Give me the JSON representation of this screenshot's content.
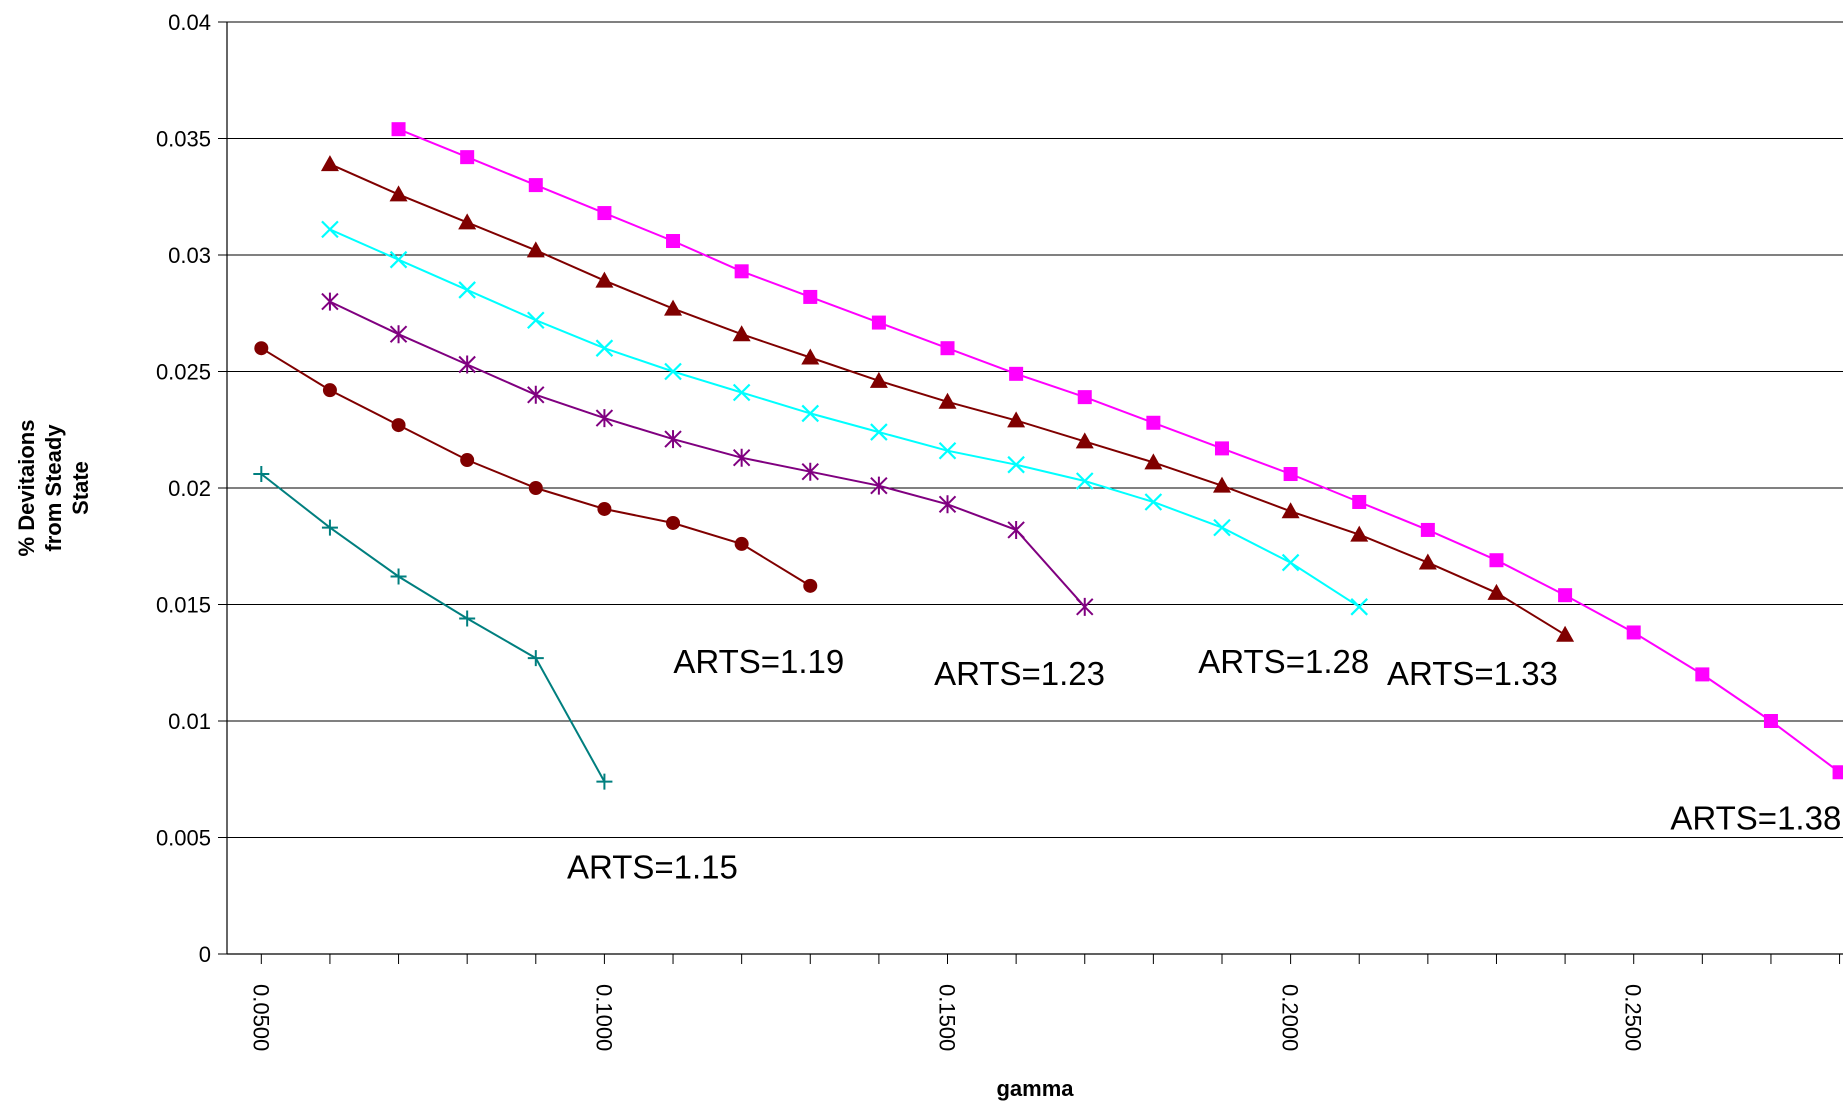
{
  "chart_data": {
    "type": "line",
    "title": "",
    "xlabel": "gamma",
    "ylabel": "% Devitaions from Steady State",
    "xlim": [
      0.045,
      0.2805
    ],
    "ylim": [
      0,
      0.04
    ],
    "y_ticks": [
      0,
      0.005,
      0.01,
      0.015,
      0.02,
      0.025,
      0.03,
      0.035,
      0.04
    ],
    "y_tick_labels": [
      "0",
      "0.005",
      "0.01",
      "0.015",
      "0.02",
      "0.025",
      "0.03",
      "0.035",
      "0.04"
    ],
    "x_ticks": [
      0.05,
      0.1,
      0.15,
      0.2,
      0.25
    ],
    "x_tick_labels": [
      "0.0500",
      "0.1000",
      "0.1500",
      "0.2000",
      "0.2500"
    ],
    "grid": "horizontal",
    "legend": "none",
    "series": [
      {
        "marker": "plus",
        "color": "#007F7F",
        "label": "ARTS=1.15",
        "x": [
          0.05,
          0.06,
          0.07,
          0.08,
          0.09,
          0.1
        ],
        "y": [
          0.0206,
          0.0183,
          0.0162,
          0.0144,
          0.0127,
          0.0074
        ]
      },
      {
        "marker": "circle",
        "color": "#800000",
        "label": "ARTS=1.19",
        "x": [
          0.05,
          0.06,
          0.07,
          0.08,
          0.09,
          0.1,
          0.11,
          0.12,
          0.13
        ],
        "y": [
          0.026,
          0.0242,
          0.0227,
          0.0212,
          0.02,
          0.0191,
          0.0185,
          0.0176,
          0.0158
        ]
      },
      {
        "marker": "asterisk",
        "color": "#800080",
        "label": "ARTS=1.23",
        "x": [
          0.06,
          0.07,
          0.08,
          0.09,
          0.1,
          0.11,
          0.12,
          0.13,
          0.14,
          0.15,
          0.16,
          0.17
        ],
        "y": [
          0.028,
          0.0266,
          0.0253,
          0.024,
          0.023,
          0.0221,
          0.0213,
          0.0207,
          0.0201,
          0.0193,
          0.0182,
          0.0149
        ]
      },
      {
        "marker": "x",
        "color": "#00FFFF",
        "label": "ARTS=1.28",
        "x": [
          0.06,
          0.07,
          0.08,
          0.09,
          0.1,
          0.11,
          0.12,
          0.13,
          0.14,
          0.15,
          0.16,
          0.17,
          0.18,
          0.19,
          0.2,
          0.21
        ],
        "y": [
          0.0311,
          0.0298,
          0.0285,
          0.0272,
          0.026,
          0.025,
          0.0241,
          0.0232,
          0.0224,
          0.0216,
          0.021,
          0.0203,
          0.0194,
          0.0183,
          0.0168,
          0.0149
        ]
      },
      {
        "marker": "triangle",
        "color": "#800000",
        "label": "ARTS=1.33",
        "x": [
          0.06,
          0.07,
          0.08,
          0.09,
          0.1,
          0.11,
          0.12,
          0.13,
          0.14,
          0.15,
          0.16,
          0.17,
          0.18,
          0.19,
          0.2,
          0.21,
          0.22,
          0.23,
          0.24
        ],
        "y": [
          0.0339,
          0.0326,
          0.0314,
          0.0302,
          0.0289,
          0.0277,
          0.0266,
          0.0256,
          0.0246,
          0.0237,
          0.0229,
          0.022,
          0.0211,
          0.0201,
          0.019,
          0.018,
          0.0168,
          0.0155,
          0.0137
        ]
      },
      {
        "marker": "square",
        "color": "#FF00FF",
        "label": "ARTS=1.38",
        "x": [
          0.07,
          0.08,
          0.09,
          0.1,
          0.11,
          0.12,
          0.13,
          0.14,
          0.15,
          0.16,
          0.17,
          0.18,
          0.19,
          0.2,
          0.21,
          0.22,
          0.23,
          0.24,
          0.25,
          0.26,
          0.27,
          0.28
        ],
        "y": [
          0.0354,
          0.0342,
          0.033,
          0.0318,
          0.0306,
          0.0293,
          0.0282,
          0.0271,
          0.026,
          0.0249,
          0.0239,
          0.0228,
          0.0217,
          0.0206,
          0.0194,
          0.0182,
          0.0169,
          0.0154,
          0.0138,
          0.012,
          0.01,
          0.0078
        ]
      }
    ],
    "annotations": [
      {
        "text": "ARTS=1.15",
        "x": 0.107,
        "y": 0.00325
      },
      {
        "text": "ARTS=1.19",
        "x": 0.1225,
        "y": 0.01205
      },
      {
        "text": "ARTS=1.23",
        "x": 0.1605,
        "y": 0.01155
      },
      {
        "text": "ARTS=1.28",
        "x": 0.199,
        "y": 0.01205
      },
      {
        "text": "ARTS=1.33",
        "x": 0.2265,
        "y": 0.01155
      },
      {
        "text": "ARTS=1.38",
        "x": 0.2678,
        "y": 0.00535
      }
    ]
  }
}
